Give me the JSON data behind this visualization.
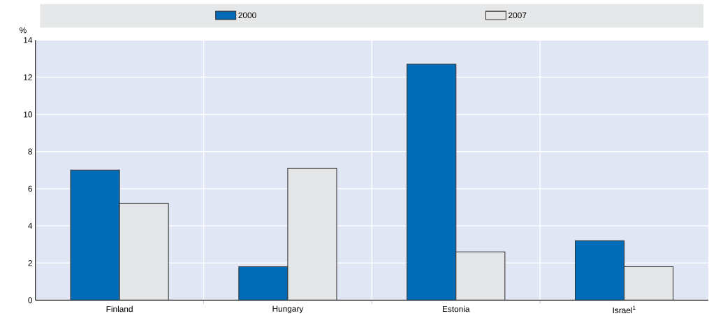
{
  "chart_data": {
    "type": "bar",
    "ylabel": "%",
    "categories": [
      "Finland",
      "Hungary",
      "Estonia",
      "Israel$^{1}$"
    ],
    "series": [
      {
        "name": "2000",
        "color": "#006bb6",
        "values": [
          7.0,
          1.8,
          12.7,
          3.2
        ]
      },
      {
        "name": "2007",
        "color": "#e4e5e7",
        "values": [
          5.2,
          7.1,
          2.6,
          1.8
        ]
      }
    ],
    "ylim": [
      0,
      14
    ],
    "yticks": [
      0,
      2,
      4,
      6,
      8,
      10,
      12,
      14
    ],
    "grid": true,
    "legend": "top"
  }
}
